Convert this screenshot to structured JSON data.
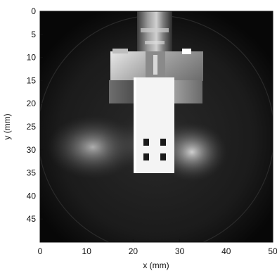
{
  "chart_data": {
    "type": "heatmap",
    "title": "",
    "xlabel": "x (mm)",
    "ylabel": "y (mm)",
    "xlim": [
      0,
      50
    ],
    "ylim": [
      0,
      50
    ],
    "y_axis_direction": "down",
    "x_ticks": [
      "0",
      "10",
      "20",
      "30",
      "40",
      "50"
    ],
    "y_ticks": [
      "0",
      "5",
      "10",
      "15",
      "20",
      "25",
      "30",
      "35",
      "40",
      "45"
    ],
    "x_tick_values": [
      0,
      10,
      20,
      30,
      40,
      50
    ],
    "y_tick_values": [
      0,
      5,
      10,
      15,
      20,
      25,
      30,
      35,
      40,
      45
    ],
    "colormap": "grayscale",
    "grid": false,
    "legend": "none"
  }
}
